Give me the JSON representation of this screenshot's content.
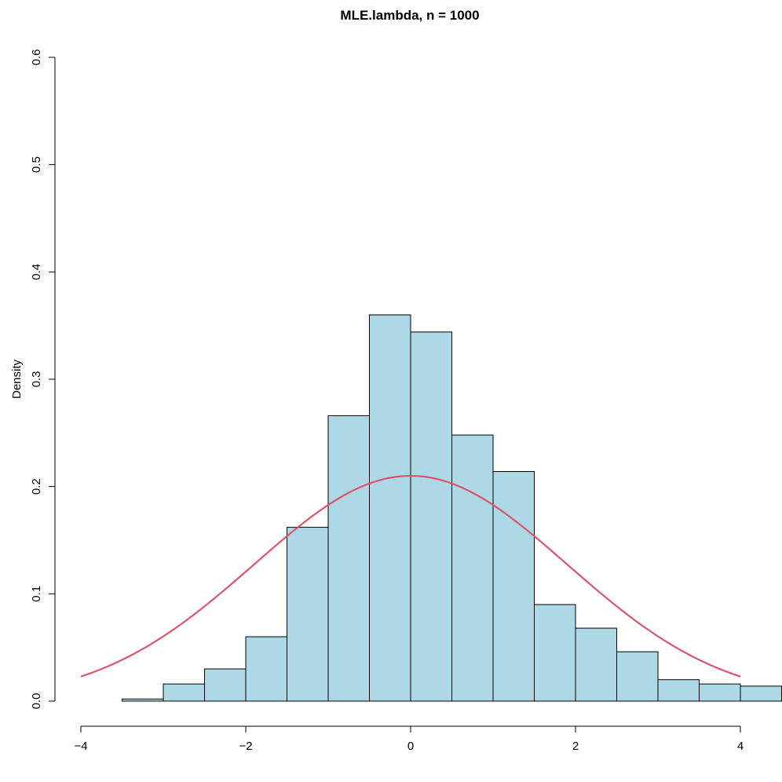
{
  "chart_data": {
    "type": "bar",
    "subtype": "histogram",
    "title": "MLE.lambda, n = 1000",
    "xlabel": "",
    "ylabel": "Density",
    "xlim": [
      -4,
      4.3
    ],
    "ylim": [
      0,
      0.6
    ],
    "x_ticks": [
      -4,
      -2,
      0,
      2,
      4
    ],
    "x_tick_labels": [
      "−4",
      "−2",
      "0",
      "2",
      "4"
    ],
    "y_ticks": [
      0.0,
      0.1,
      0.2,
      0.3,
      0.4,
      0.5,
      0.6
    ],
    "y_tick_labels": [
      "0.0",
      "0.1",
      "0.2",
      "0.3",
      "0.4",
      "0.5",
      "0.6"
    ],
    "bin_edges": [
      -3.5,
      -3.0,
      -2.5,
      -2.0,
      -1.5,
      -1.0,
      -0.5,
      0.0,
      0.5,
      1.0,
      1.5,
      2.0,
      2.5,
      3.0,
      3.5,
      4.0,
      4.5
    ],
    "values": [
      0.002,
      0.016,
      0.03,
      0.06,
      0.162,
      0.266,
      0.36,
      0.344,
      0.248,
      0.214,
      0.09,
      0.068,
      0.046,
      0.02,
      0.016,
      0.014
    ],
    "bar_color": "#add8e6",
    "grid": false,
    "overlay_curve": {
      "type": "line",
      "description": "normal density, mean 0",
      "mean": 0,
      "sd": 1.9,
      "x_range": [
        -4,
        4
      ],
      "color": "#df536b"
    }
  }
}
